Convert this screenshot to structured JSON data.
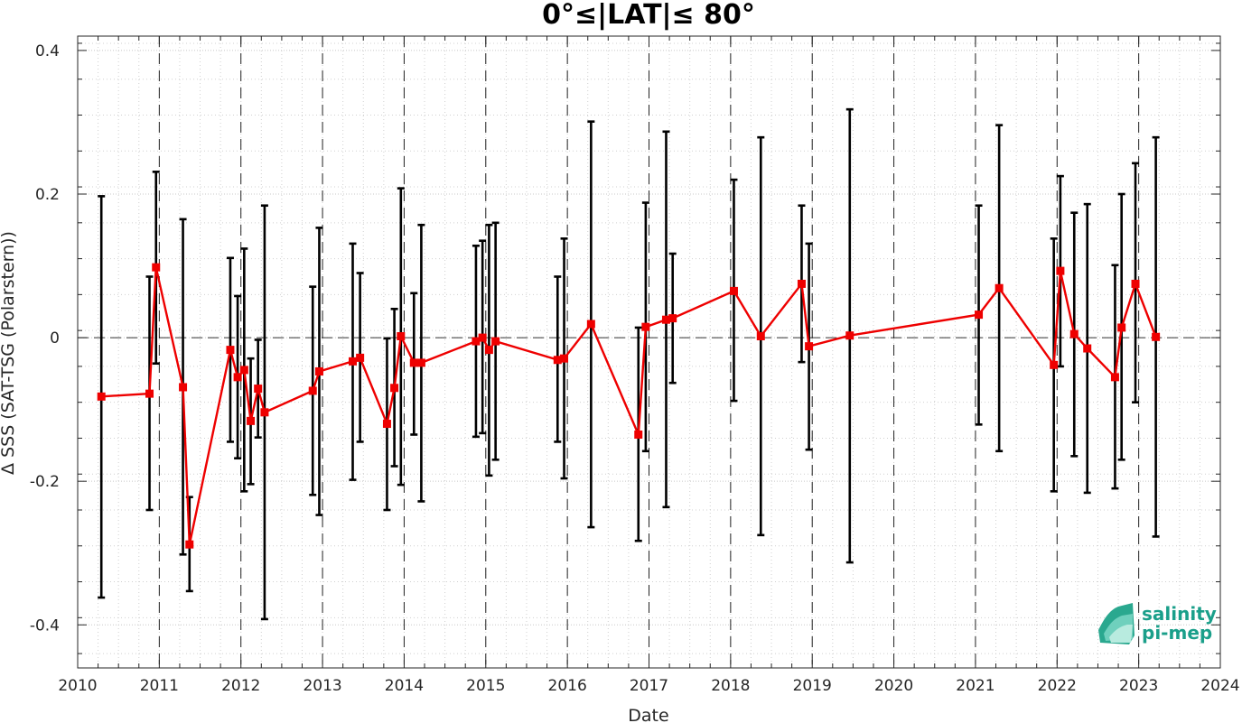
{
  "chart_data": {
    "type": "line",
    "title": "0°≤|LAT|≤ 80°",
    "xlabel": "Date",
    "ylabel": "Δ SSS (SAT-TSG (Polarstern))",
    "xlim": [
      2010,
      2024
    ],
    "ylim": [
      -0.46,
      0.42
    ],
    "x_ticks": [
      "2010",
      "2011",
      "2012",
      "2013",
      "2014",
      "2015",
      "2016",
      "2017",
      "2018",
      "2019",
      "2020",
      "2021",
      "2022",
      "2023",
      "2024"
    ],
    "y_ticks": [
      "0.4",
      "0.2",
      "0",
      "-0.2",
      "-0.4"
    ],
    "y_tick_values": [
      0.4,
      0.2,
      0,
      -0.2,
      -0.4
    ],
    "year_markers": [
      2011,
      2012,
      2013,
      2014,
      2015,
      2016,
      2017,
      2018,
      2019,
      2020,
      2021,
      2022,
      2023
    ],
    "zero_line": 0,
    "grid": true,
    "series": [
      {
        "color": "#ee0000",
        "errorbar_color": "#000000",
        "points": [
          {
            "x": 2010.29,
            "y": -0.082,
            "lo": -0.362,
            "hi": 0.197
          },
          {
            "x": 2010.88,
            "y": -0.078,
            "lo": -0.24,
            "hi": 0.085
          },
          {
            "x": 2010.96,
            "y": 0.098,
            "lo": -0.036,
            "hi": 0.231
          },
          {
            "x": 2011.29,
            "y": -0.069,
            "lo": -0.302,
            "hi": 0.165
          },
          {
            "x": 2011.37,
            "y": -0.288,
            "lo": -0.353,
            "hi": -0.222
          },
          {
            "x": 2011.87,
            "y": -0.017,
            "lo": -0.145,
            "hi": 0.111
          },
          {
            "x": 2011.96,
            "y": -0.055,
            "lo": -0.168,
            "hi": 0.058
          },
          {
            "x": 2012.04,
            "y": -0.045,
            "lo": -0.214,
            "hi": 0.124
          },
          {
            "x": 2012.12,
            "y": -0.116,
            "lo": -0.204,
            "hi": -0.029
          },
          {
            "x": 2012.21,
            "y": -0.071,
            "lo": -0.139,
            "hi": -0.003
          },
          {
            "x": 2012.29,
            "y": -0.104,
            "lo": -0.392,
            "hi": 0.184
          },
          {
            "x": 2012.88,
            "y": -0.074,
            "lo": -0.219,
            "hi": 0.071
          },
          {
            "x": 2012.96,
            "y": -0.047,
            "lo": -0.247,
            "hi": 0.153
          },
          {
            "x": 2013.37,
            "y": -0.033,
            "lo": -0.198,
            "hi": 0.131
          },
          {
            "x": 2013.46,
            "y": -0.028,
            "lo": -0.145,
            "hi": 0.09
          },
          {
            "x": 2013.79,
            "y": -0.12,
            "lo": -0.24,
            "hi": -0.001
          },
          {
            "x": 2013.88,
            "y": -0.07,
            "lo": -0.179,
            "hi": 0.04
          },
          {
            "x": 2013.96,
            "y": 0.002,
            "lo": -0.205,
            "hi": 0.208
          },
          {
            "x": 2014.12,
            "y": -0.035,
            "lo": -0.135,
            "hi": 0.062
          },
          {
            "x": 2014.21,
            "y": -0.035,
            "lo": -0.228,
            "hi": 0.157
          },
          {
            "x": 2014.88,
            "y": -0.005,
            "lo": -0.138,
            "hi": 0.128
          },
          {
            "x": 2014.96,
            "y": 0.0,
            "lo": -0.133,
            "hi": 0.135
          },
          {
            "x": 2015.04,
            "y": -0.017,
            "lo": -0.192,
            "hi": 0.157
          },
          {
            "x": 2015.12,
            "y": -0.005,
            "lo": -0.17,
            "hi": 0.16
          },
          {
            "x": 2015.88,
            "y": -0.031,
            "lo": -0.145,
            "hi": 0.085
          },
          {
            "x": 2015.96,
            "y": -0.029,
            "lo": -0.196,
            "hi": 0.138
          },
          {
            "x": 2016.29,
            "y": 0.019,
            "lo": -0.264,
            "hi": 0.301
          },
          {
            "x": 2016.87,
            "y": -0.135,
            "lo": -0.283,
            "hi": 0.014
          },
          {
            "x": 2016.96,
            "y": 0.015,
            "lo": -0.158,
            "hi": 0.188
          },
          {
            "x": 2017.21,
            "y": 0.025,
            "lo": -0.236,
            "hi": 0.287
          },
          {
            "x": 2017.29,
            "y": 0.027,
            "lo": -0.063,
            "hi": 0.117
          },
          {
            "x": 2018.04,
            "y": 0.065,
            "lo": -0.088,
            "hi": 0.22
          },
          {
            "x": 2018.37,
            "y": 0.002,
            "lo": -0.275,
            "hi": 0.279
          },
          {
            "x": 2018.87,
            "y": 0.075,
            "lo": -0.034,
            "hi": 0.184
          },
          {
            "x": 2018.96,
            "y": -0.012,
            "lo": -0.156,
            "hi": 0.131
          },
          {
            "x": 2019.46,
            "y": 0.003,
            "lo": -0.313,
            "hi": 0.318
          },
          {
            "x": 2021.04,
            "y": 0.032,
            "lo": -0.121,
            "hi": 0.184
          },
          {
            "x": 2021.29,
            "y": 0.069,
            "lo": -0.158,
            "hi": 0.296
          },
          {
            "x": 2021.96,
            "y": -0.038,
            "lo": -0.214,
            "hi": 0.138
          },
          {
            "x": 2022.04,
            "y": 0.093,
            "lo": -0.04,
            "hi": 0.225
          },
          {
            "x": 2022.21,
            "y": 0.005,
            "lo": -0.165,
            "hi": 0.174
          },
          {
            "x": 2022.37,
            "y": -0.015,
            "lo": -0.216,
            "hi": 0.186
          },
          {
            "x": 2022.71,
            "y": -0.055,
            "lo": -0.21,
            "hi": 0.101
          },
          {
            "x": 2022.79,
            "y": 0.014,
            "lo": -0.17,
            "hi": 0.2
          },
          {
            "x": 2022.96,
            "y": 0.075,
            "lo": -0.09,
            "hi": 0.243
          },
          {
            "x": 2023.21,
            "y": 0.001,
            "lo": -0.277,
            "hi": 0.279
          }
        ]
      }
    ]
  },
  "logo": {
    "line1": "salinity",
    "line2": "pi-mep",
    "color": "#1a9f8a"
  }
}
